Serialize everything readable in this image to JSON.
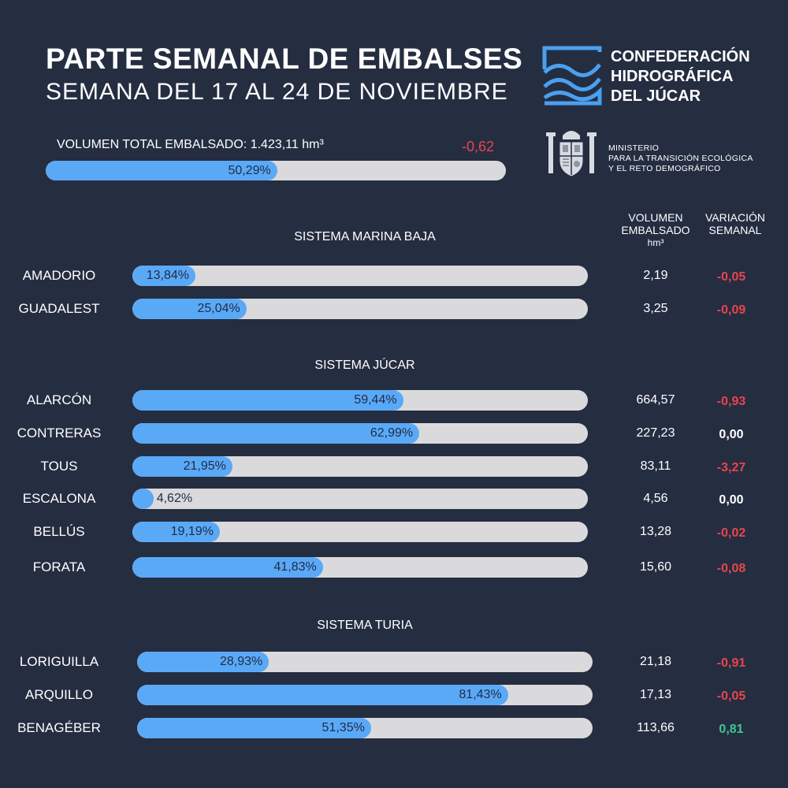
{
  "header": {
    "title": "PARTE SEMANAL DE EMBALSES",
    "subtitle": "SEMANA DEL 17 AL 24 DE NOVIEMBRE"
  },
  "logos": {
    "chj_lines": [
      "CONFEDERACIÓN",
      "HIDROGRÁFICA",
      "DEL JÚCAR"
    ],
    "ministry_lines": [
      "MINISTERIO",
      "PARA LA TRANSICIÓN ECOLÓGICA",
      "Y EL RETO DEMOGRÁFICO"
    ]
  },
  "columns": {
    "volume": [
      "VOLUMEN",
      "EMBALSADO",
      "hm³"
    ],
    "change": [
      "VARIACIÓN",
      "SEMANAL"
    ]
  },
  "colors": {
    "background": "#252d41",
    "bar_fill": "#5aa9f7",
    "bar_track": "#dadadc",
    "negative": "#e8454b",
    "positive": "#3ec98f",
    "neutral": "#ffffff"
  },
  "chart_data": {
    "type": "bar",
    "orientation": "horizontal",
    "title": "PARTE SEMANAL DE EMBALSES",
    "subtitle": "SEMANA DEL 17 AL 24 DE NOVIEMBRE",
    "unit_percent": "%",
    "xlim": [
      0,
      100
    ],
    "total": {
      "label": "VOLUMEN TOTAL EMBALSADO: 1.423,11 hm³",
      "percent": 50.29,
      "percent_label": "50,29%",
      "change_label": "-0,62"
    },
    "systems": [
      {
        "name": "SISTEMA MARINA BAJA",
        "reservoirs": [
          {
            "name": "AMADORIO",
            "percent": 13.84,
            "percent_label": "13,84%",
            "volume": "2,19",
            "change": "-0,05"
          },
          {
            "name": "GUADALEST",
            "percent": 25.04,
            "percent_label": "25,04%",
            "volume": "3,25",
            "change": "-0,09"
          }
        ]
      },
      {
        "name": "SISTEMA JÚCAR",
        "reservoirs": [
          {
            "name": "ALARCÓN",
            "percent": 59.44,
            "percent_label": "59,44%",
            "volume": "664,57",
            "change": "-0,93"
          },
          {
            "name": "CONTRERAS",
            "percent": 62.99,
            "percent_label": "62,99%",
            "volume": "227,23",
            "change": "0,00"
          },
          {
            "name": "TOUS",
            "percent": 21.95,
            "percent_label": "21,95%",
            "volume": "83,11",
            "change": "-3,27"
          },
          {
            "name": "ESCALONA",
            "percent": 4.62,
            "percent_label": "4,62%",
            "volume": "4,56",
            "change": "0,00"
          },
          {
            "name": "BELLÚS",
            "percent": 19.19,
            "percent_label": "19,19%",
            "volume": "13,28",
            "change": "-0,02"
          },
          {
            "name": "FORATA",
            "percent": 41.83,
            "percent_label": "41,83%",
            "volume": "15,60",
            "change": "-0,08"
          }
        ]
      },
      {
        "name": "SISTEMA TURIA",
        "reservoirs": [
          {
            "name": "LORIGUILLA",
            "percent": 28.93,
            "percent_label": "28,93%",
            "volume": "21,18",
            "change": "-0,91"
          },
          {
            "name": "ARQUILLO",
            "percent": 81.43,
            "percent_label": "81,43%",
            "volume": "17,13",
            "change": "-0,05"
          },
          {
            "name": "BENAGÉBER",
            "percent": 51.35,
            "percent_label": "51,35%",
            "volume": "113,66",
            "change": "0,81"
          }
        ]
      }
    ]
  }
}
